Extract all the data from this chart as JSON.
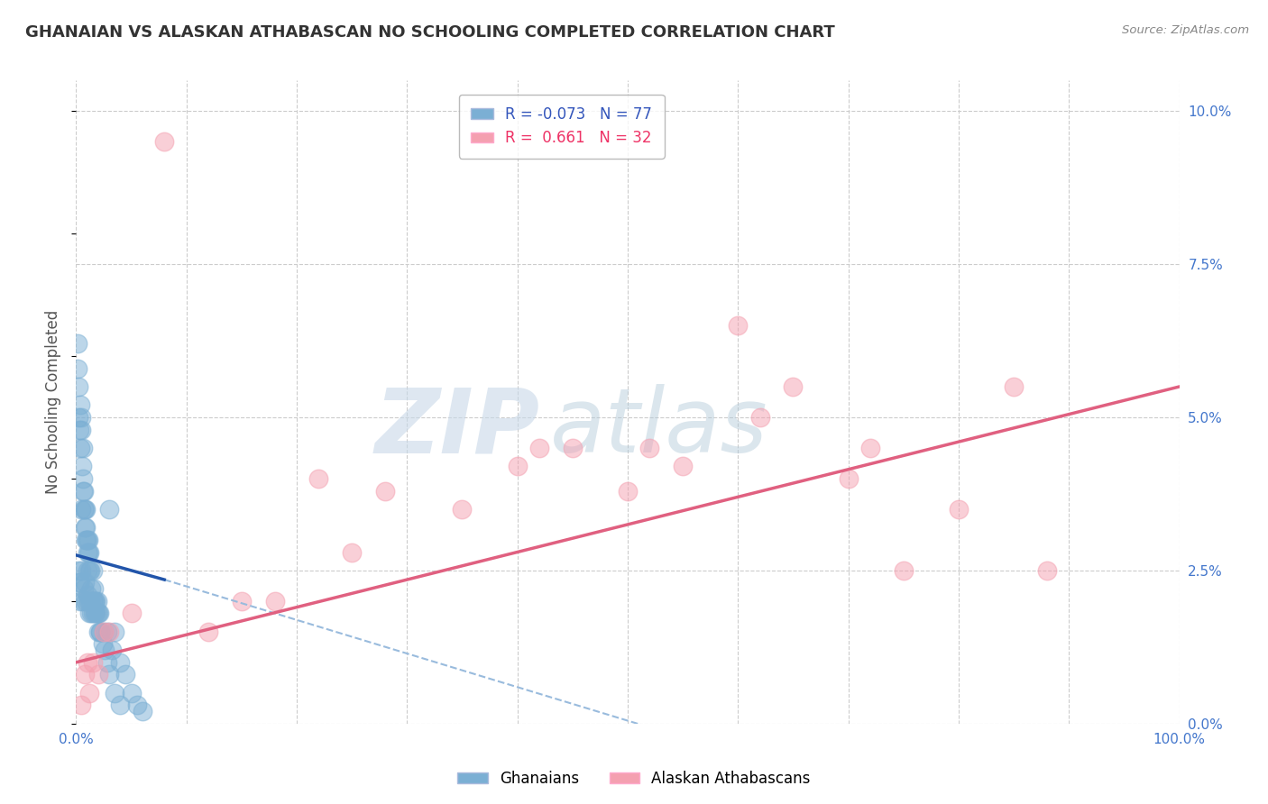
{
  "title": "GHANAIAN VS ALASKAN ATHABASCAN NO SCHOOLING COMPLETED CORRELATION CHART",
  "source": "Source: ZipAtlas.com",
  "ylabel": "No Schooling Completed",
  "r_blue": -0.073,
  "n_blue": 77,
  "r_pink": 0.661,
  "n_pink": 32,
  "blue_color": "#7bafd4",
  "pink_color": "#f4a0b0",
  "blue_line_color": "#2255aa",
  "pink_line_color": "#e06080",
  "dashed_line_color": "#99bbdd",
  "watermark_zip": "ZIP",
  "watermark_atlas": "atlas",
  "legend_labels": [
    "Ghanaians",
    "Alaskan Athabascans"
  ],
  "blue_scatter_x": [
    0.1,
    0.15,
    0.2,
    0.25,
    0.3,
    0.35,
    0.4,
    0.45,
    0.5,
    0.5,
    0.55,
    0.6,
    0.6,
    0.65,
    0.7,
    0.7,
    0.8,
    0.8,
    0.85,
    0.9,
    0.9,
    0.95,
    1.0,
    1.0,
    1.0,
    1.1,
    1.1,
    1.2,
    1.2,
    1.3,
    1.4,
    1.5,
    1.5,
    1.6,
    1.7,
    1.8,
    1.9,
    2.0,
    2.1,
    2.2,
    2.5,
    2.8,
    3.0,
    3.2,
    3.5,
    4.0,
    4.5,
    5.0,
    5.5,
    6.0,
    0.3,
    0.4,
    0.5,
    0.6,
    0.7,
    0.8,
    0.9,
    1.0,
    1.1,
    1.2,
    1.3,
    1.4,
    1.5,
    1.6,
    1.7,
    1.8,
    1.9,
    2.0,
    2.2,
    2.4,
    2.6,
    2.8,
    3.0,
    3.5,
    4.0,
    0.2,
    0.3
  ],
  "blue_scatter_y": [
    5.8,
    6.2,
    5.5,
    5.0,
    4.8,
    5.2,
    4.5,
    5.0,
    4.8,
    3.5,
    4.2,
    4.5,
    3.8,
    4.0,
    3.5,
    3.8,
    3.2,
    3.5,
    3.0,
    3.2,
    3.5,
    3.0,
    2.8,
    3.0,
    2.5,
    2.8,
    3.0,
    2.5,
    2.8,
    2.5,
    2.2,
    2.5,
    2.0,
    2.2,
    2.0,
    1.8,
    2.0,
    1.8,
    1.8,
    1.5,
    1.5,
    1.5,
    3.5,
    1.2,
    1.5,
    1.0,
    0.8,
    0.5,
    0.3,
    0.2,
    2.3,
    2.0,
    2.5,
    2.0,
    2.2,
    2.3,
    2.0,
    2.1,
    2.0,
    1.8,
    2.0,
    1.8,
    1.8,
    2.0,
    1.8,
    2.0,
    1.8,
    1.5,
    1.5,
    1.3,
    1.2,
    1.0,
    0.8,
    0.5,
    0.3,
    2.5,
    2.3
  ],
  "pink_scatter_x": [
    0.5,
    0.8,
    1.2,
    1.5,
    2.0,
    3.0,
    5.0,
    8.0,
    12.0,
    18.0,
    22.0,
    28.0,
    35.0,
    40.0,
    45.0,
    50.0,
    55.0,
    60.0,
    65.0,
    70.0,
    75.0,
    80.0,
    85.0,
    1.0,
    2.5,
    15.0,
    25.0,
    42.0,
    52.0,
    62.0,
    72.0,
    88.0
  ],
  "pink_scatter_y": [
    0.3,
    0.8,
    0.5,
    1.0,
    0.8,
    1.5,
    1.8,
    9.5,
    1.5,
    2.0,
    4.0,
    3.8,
    3.5,
    4.2,
    4.5,
    3.8,
    4.2,
    6.5,
    5.5,
    4.0,
    2.5,
    3.5,
    5.5,
    1.0,
    1.5,
    2.0,
    2.8,
    4.5,
    4.5,
    5.0,
    4.5,
    2.5
  ],
  "xlim": [
    0,
    100
  ],
  "ylim": [
    0,
    10.5
  ],
  "yticks_right": [
    0.0,
    2.5,
    5.0,
    7.5,
    10.0
  ],
  "background_color": "#ffffff",
  "grid_color": "#cccccc",
  "blue_line_x_start": 0.0,
  "blue_line_x_end": 8.0,
  "blue_dash_x_start": 8.0,
  "blue_dash_x_end": 60.0,
  "pink_line_x_start": 0.0,
  "pink_line_x_end": 100.0
}
